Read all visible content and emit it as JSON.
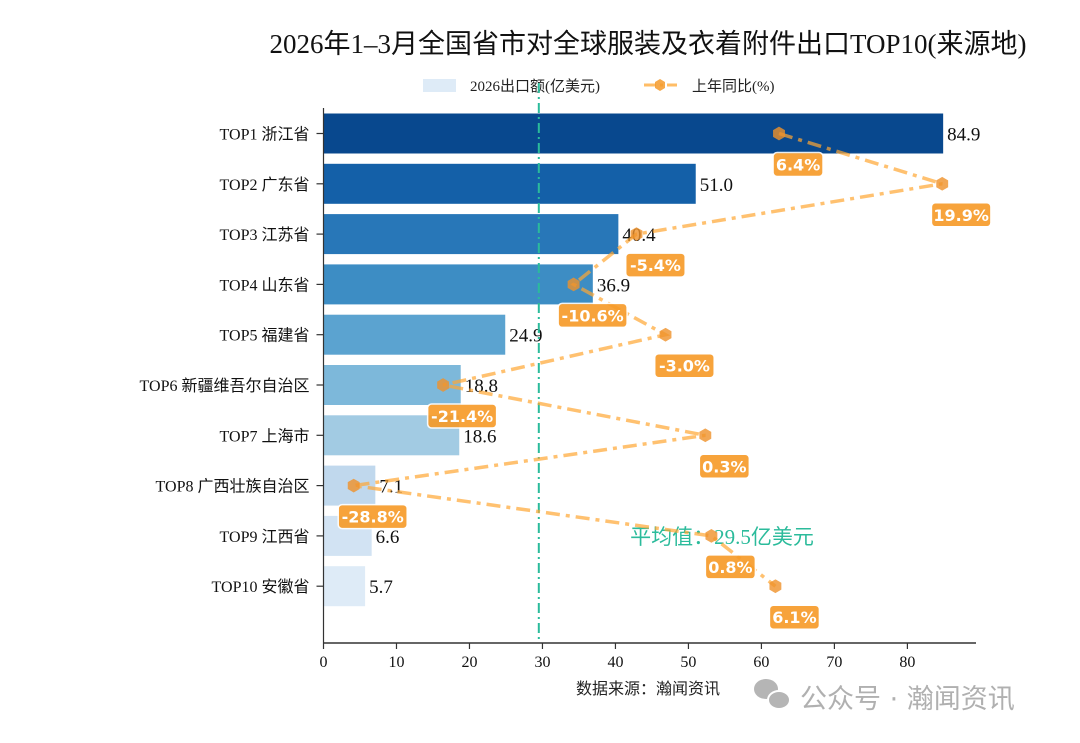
{
  "chart_data": {
    "type": "bar",
    "orientation": "horizontal",
    "title": "2026年1–3月全国省市对全球服装及衣着附件出口TOP10(来源地)",
    "categories": [
      "TOP1 浙江省",
      "TOP2 广东省",
      "TOP3 江苏省",
      "TOP4 山东省",
      "TOP5 福建省",
      "TOP6 新疆维吾尔自治区",
      "TOP7 上海市",
      "TOP8 广西壮族自治区",
      "TOP9 江西省",
      "TOP10 安徽省"
    ],
    "series": [
      {
        "name": "2026出口额(亿美元)",
        "kind": "bar",
        "values": [
          84.9,
          51.0,
          40.4,
          36.9,
          24.9,
          18.8,
          18.6,
          7.1,
          6.6,
          5.7
        ],
        "value_labels": [
          "84.9",
          "51.0",
          "40.4",
          "36.9",
          "24.9",
          "18.8",
          "18.6",
          "7.1",
          "6.6",
          "5.7"
        ],
        "colors": [
          "#08488e",
          "#1460a8",
          "#2877b8",
          "#3d8dc4",
          "#5ba3d0",
          "#7db8da",
          "#a2cbe3",
          "#c0d8ed",
          "#d2e3f3",
          "#deebf7"
        ]
      },
      {
        "name": "上年同比(%)",
        "kind": "line",
        "axis": "secondary-x-hidden",
        "values": [
          6.4,
          19.9,
          -5.4,
          -10.6,
          -3.0,
          -21.4,
          0.3,
          -28.8,
          0.8,
          6.1
        ],
        "value_labels": [
          "6.4%",
          "19.9%",
          "-5.4%",
          "-10.6%",
          "-3.0%",
          "-21.4%",
          "0.3%",
          "-28.8%",
          "0.8%",
          "6.1%"
        ],
        "color": "#ffa733",
        "linestyle": "dashdot",
        "marker": "hexagon"
      }
    ],
    "xlim": [
      0,
      89.4
    ],
    "x2lim": [
      -31.3,
      22.7
    ],
    "xticks": [
      "0",
      "10",
      "20",
      "30",
      "40",
      "50",
      "60",
      "70",
      "80"
    ],
    "xlabel": "数据来源：瀚闻资讯",
    "reference_line": {
      "value": 29.5,
      "label": "平均值：29.5亿美元",
      "color": "#2bbb9b"
    },
    "legend_position": "top-center",
    "grid": false
  },
  "watermark": "公众号 · 瀚闻资讯"
}
